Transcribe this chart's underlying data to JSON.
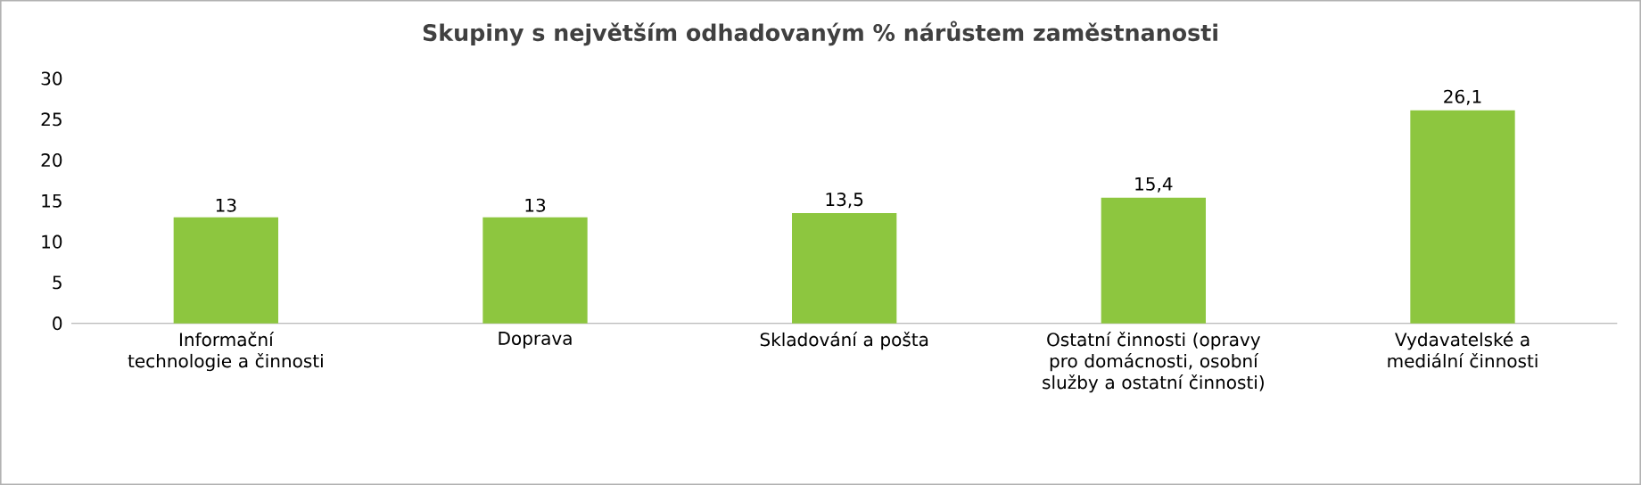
{
  "chart_data": {
    "type": "bar",
    "title": "Skupiny s největším odhadovaným % nárůstem zaměstnanosti",
    "categories": [
      "Informační technologie a činnosti",
      "Doprava",
      "Skladování a pošta",
      "Ostatní činnosti (opravy pro domácnosti, osobní služby a ostatní činnosti)",
      "Vydavatelské a mediální činnosti"
    ],
    "values": [
      13,
      13,
      13.5,
      15.4,
      26.1
    ],
    "value_labels": [
      "13",
      "13",
      "13,5",
      "15,4",
      "26,1"
    ],
    "color": "#8dc63f",
    "ylim": [
      0,
      30
    ],
    "yticks": [
      0,
      5,
      10,
      15,
      20,
      25,
      30
    ],
    "grid": false
  }
}
